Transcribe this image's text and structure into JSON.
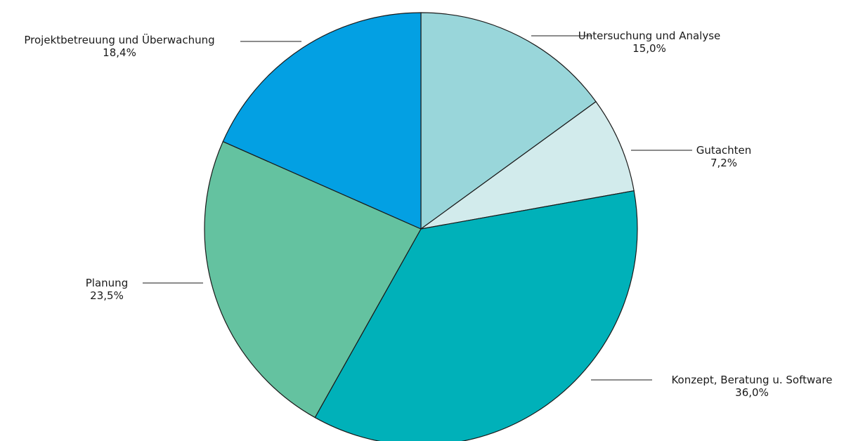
{
  "chart_data": {
    "type": "pie",
    "start_angle_deg": 0,
    "direction": "clockwise",
    "slices": [
      {
        "label": "Untersuchung und Analyse",
        "value": 15.0,
        "value_label": "15,0%",
        "color": "#99d6da"
      },
      {
        "label": "Gutachten",
        "value": 7.2,
        "value_label": "7,2%",
        "color": "#d2ebec"
      },
      {
        "label": "Konzept, Beratung u. Software",
        "value": 36.0,
        "value_label": "36,0%",
        "color": "#00b1b9"
      },
      {
        "label": "Planung",
        "value": 23.5,
        "value_label": "23,5%",
        "color": "#64c2a0"
      },
      {
        "label": "Projektbetreuung und Überwachung",
        "value": 18.4,
        "value_label": "18,4%",
        "color": "#03a0e3"
      }
    ]
  }
}
